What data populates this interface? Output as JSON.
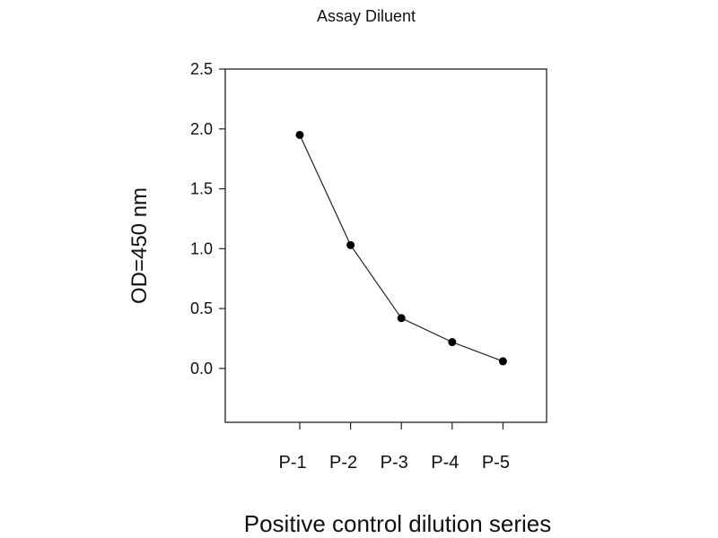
{
  "chart_data": {
    "type": "line",
    "title": "Assay Diluent",
    "xlabel": "Positive control dilution series",
    "ylabel": "OD=450 nm",
    "categories": [
      "P-1",
      "P-2",
      "P-3",
      "P-4",
      "P-5"
    ],
    "values": [
      1.95,
      1.03,
      0.42,
      0.22,
      0.06
    ],
    "ylim": [
      -0.45,
      2.5
    ],
    "yticks": [
      "0.0",
      "0.5",
      "1.0",
      "1.5",
      "2.0",
      "2.5"
    ],
    "grid": false,
    "marker": "filled-circle",
    "color": "#000000"
  }
}
